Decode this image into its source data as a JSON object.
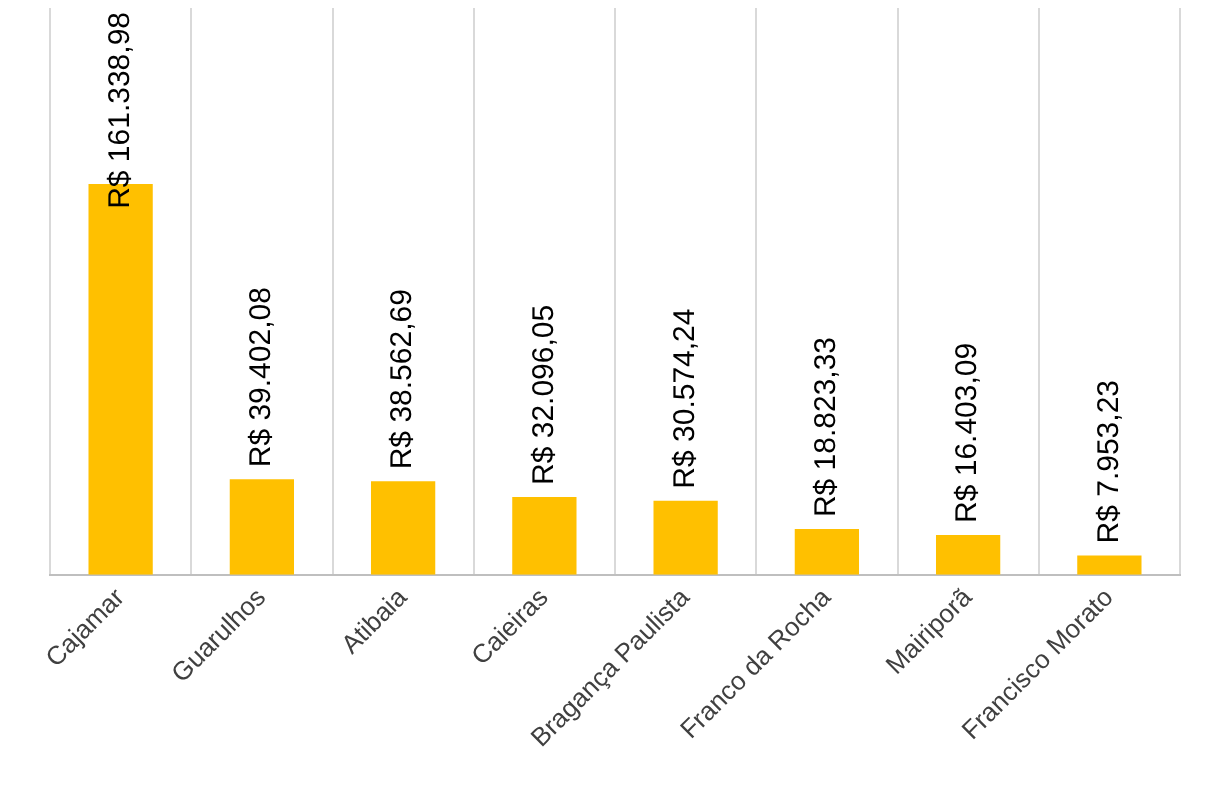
{
  "chart_data": {
    "type": "bar",
    "categories": [
      "Cajamar",
      "Guarulhos",
      "Atibaia",
      "Caieiras",
      "Bragança Paulista",
      "Franco da Rocha",
      "Mairiporã",
      "Francisco Morato"
    ],
    "values": [
      161338.98,
      39402.08,
      38562.69,
      32096.05,
      30574.24,
      18823.33,
      16403.09,
      7953.23
    ],
    "value_labels": [
      "R$ 161.338,98",
      "R$ 39.402,08",
      "R$ 38.562,69",
      "R$ 32.096,05",
      "R$ 30.574,24",
      "R$ 18.823,33",
      "R$ 16.403,09",
      "R$ 7.953,23"
    ],
    "color": "#ffc000",
    "grid": "x"
  }
}
